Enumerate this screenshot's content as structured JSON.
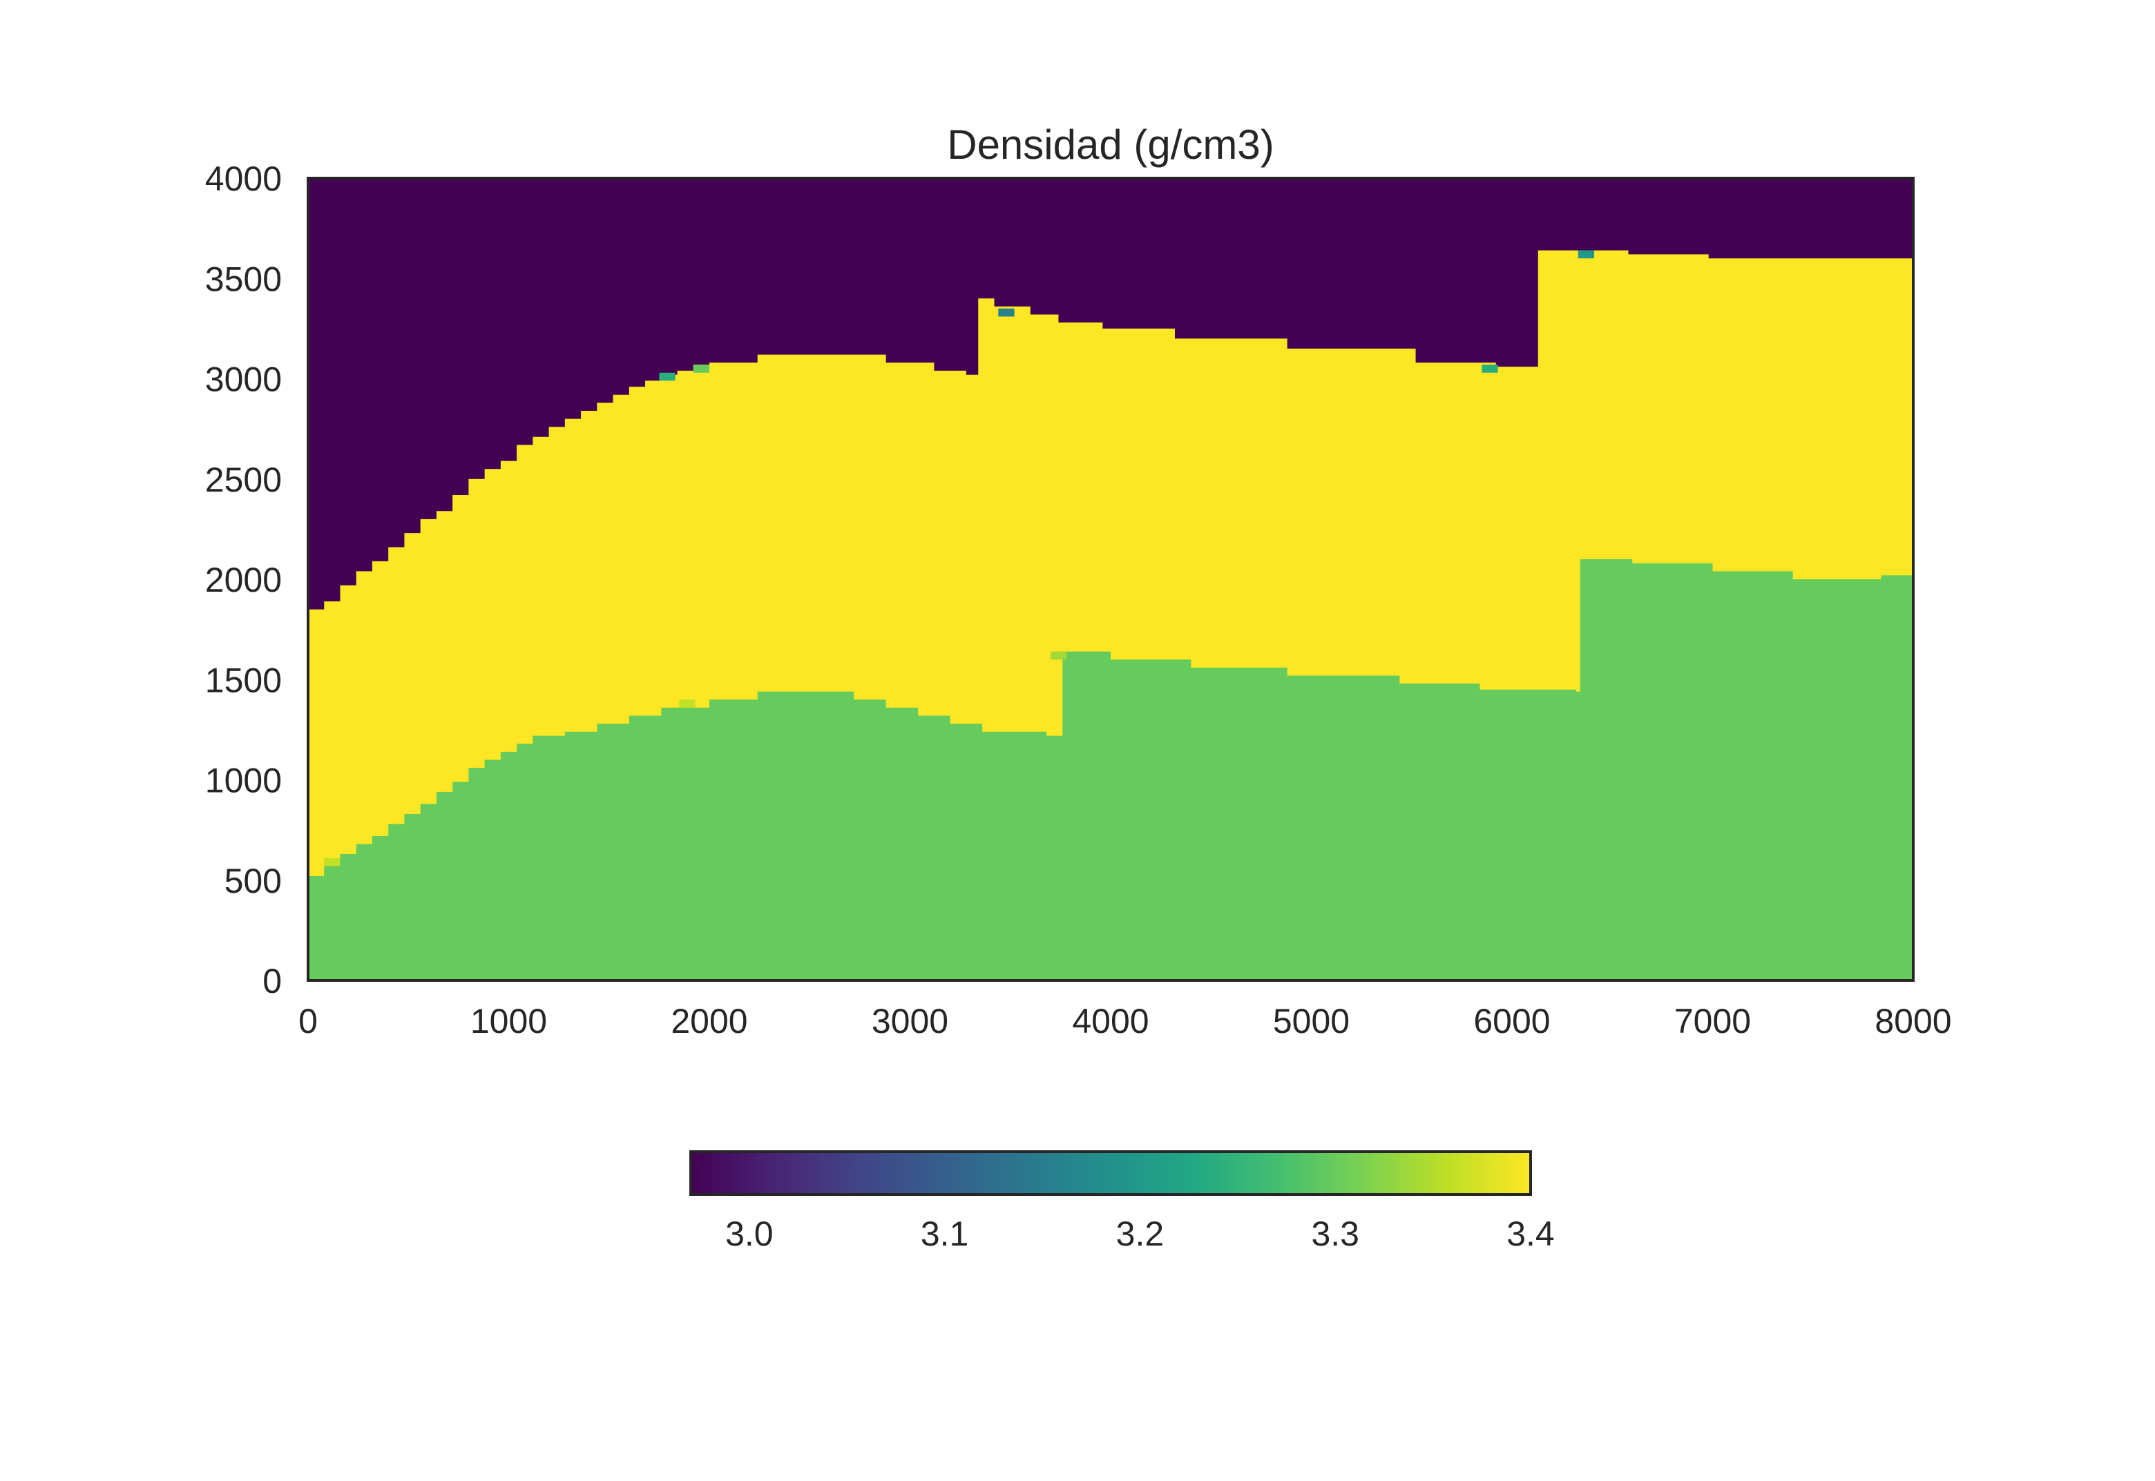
{
  "chart_data": {
    "type": "heatmap",
    "title": "Densidad (g/cm3)",
    "xlabel": "",
    "ylabel": "",
    "xlim": [
      0,
      8000
    ],
    "ylim": [
      0,
      4000
    ],
    "x_ticks": [
      "0",
      "1000",
      "2000",
      "3000",
      "4000",
      "5000",
      "6000",
      "7000",
      "8000"
    ],
    "y_ticks": [
      "0",
      "500",
      "1000",
      "1500",
      "2000",
      "2500",
      "3000",
      "3500",
      "4000"
    ],
    "grid": false,
    "colormap": "viridis",
    "colorbar": {
      "orientation": "horizontal",
      "placement": "bottom",
      "range": [
        2.97,
        3.4
      ],
      "ticks": [
        "3.0",
        "3.1",
        "3.2",
        "3.3",
        "3.4"
      ]
    },
    "layers": [
      {
        "value": 2.97,
        "color": "#440154"
      },
      {
        "value": 3.4,
        "color": "#fde725"
      },
      {
        "value": 3.32,
        "color": "#66cb5d"
      }
    ],
    "upper_interface": [
      [
        0,
        1850
      ],
      [
        80,
        1890
      ],
      [
        160,
        1970
      ],
      [
        240,
        2040
      ],
      [
        320,
        2090
      ],
      [
        400,
        2160
      ],
      [
        480,
        2230
      ],
      [
        560,
        2300
      ],
      [
        640,
        2340
      ],
      [
        720,
        2420
      ],
      [
        800,
        2500
      ],
      [
        880,
        2550
      ],
      [
        960,
        2590
      ],
      [
        1040,
        2670
      ],
      [
        1120,
        2710
      ],
      [
        1200,
        2760
      ],
      [
        1280,
        2800
      ],
      [
        1360,
        2840
      ],
      [
        1440,
        2880
      ],
      [
        1520,
        2920
      ],
      [
        1600,
        2960
      ],
      [
        1680,
        2990
      ],
      [
        1760,
        3020
      ],
      [
        1840,
        3040
      ],
      [
        1920,
        3070
      ],
      [
        2000,
        3080
      ],
      [
        2240,
        3120
      ],
      [
        2880,
        3080
      ],
      [
        3120,
        3040
      ],
      [
        3280,
        3020
      ],
      [
        3340,
        3400
      ],
      [
        3420,
        3360
      ],
      [
        3600,
        3320
      ],
      [
        3740,
        3280
      ],
      [
        3960,
        3250
      ],
      [
        4320,
        3200
      ],
      [
        4880,
        3150
      ],
      [
        5520,
        3080
      ],
      [
        5920,
        3060
      ],
      [
        6080,
        3060
      ],
      [
        6130,
        3640
      ],
      [
        6580,
        3620
      ],
      [
        6980,
        3600
      ],
      [
        8000,
        3580
      ]
    ],
    "lower_interface": [
      [
        0,
        520
      ],
      [
        80,
        590
      ],
      [
        160,
        630
      ],
      [
        240,
        680
      ],
      [
        320,
        720
      ],
      [
        400,
        780
      ],
      [
        480,
        830
      ],
      [
        560,
        880
      ],
      [
        640,
        940
      ],
      [
        720,
        990
      ],
      [
        800,
        1060
      ],
      [
        880,
        1100
      ],
      [
        960,
        1140
      ],
      [
        1040,
        1180
      ],
      [
        1120,
        1220
      ],
      [
        1280,
        1240
      ],
      [
        1440,
        1280
      ],
      [
        1600,
        1320
      ],
      [
        1760,
        1360
      ],
      [
        2000,
        1400
      ],
      [
        2240,
        1440
      ],
      [
        2720,
        1400
      ],
      [
        2880,
        1360
      ],
      [
        3040,
        1320
      ],
      [
        3200,
        1280
      ],
      [
        3360,
        1240
      ],
      [
        3680,
        1220
      ],
      [
        3760,
        1640
      ],
      [
        4000,
        1600
      ],
      [
        4400,
        1560
      ],
      [
        4880,
        1520
      ],
      [
        5440,
        1480
      ],
      [
        5840,
        1450
      ],
      [
        6320,
        1440
      ],
      [
        6340,
        2100
      ],
      [
        6600,
        2080
      ],
      [
        7000,
        2040
      ],
      [
        7400,
        2000
      ],
      [
        7840,
        2020
      ],
      [
        8000,
        2040
      ]
    ],
    "cells": [
      {
        "x": 1790,
        "y": 3010,
        "value": 3.24
      },
      {
        "x": 1960,
        "y": 3050,
        "value": 3.3
      },
      {
        "x": 1890,
        "y": 1380,
        "value": 3.36
      },
      {
        "x": 3480,
        "y": 3330,
        "value": 3.16
      },
      {
        "x": 5890,
        "y": 3050,
        "value": 3.24
      },
      {
        "x": 6370,
        "y": 3620,
        "value": 3.2
      },
      {
        "x": 3740,
        "y": 1620,
        "value": 3.34
      },
      {
        "x": 120,
        "y": 590,
        "value": 3.36
      }
    ]
  }
}
